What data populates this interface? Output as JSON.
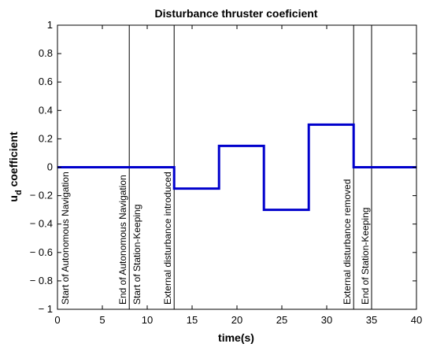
{
  "chart_data": {
    "type": "line",
    "title": "Disturbance thruster coeficient",
    "xlabel": "time(s)",
    "ylabel_main": "u",
    "ylabel_sub": "d",
    "ylabel_rest": " coefficient",
    "xlim": [
      0,
      40
    ],
    "ylim": [
      -1,
      1
    ],
    "grid": false,
    "xticks": [
      0,
      5,
      10,
      15,
      20,
      25,
      30,
      35,
      40
    ],
    "xtick_labels": [
      "0",
      "5",
      "10",
      "15",
      "20",
      "25",
      "30",
      "35",
      "40"
    ],
    "yticks": [
      -1,
      -0.8,
      -0.6,
      -0.4,
      -0.2,
      0,
      0.2,
      0.4,
      0.6,
      0.8,
      1
    ],
    "ytick_labels": [
      "− 1",
      "− 0.8",
      "− 0.6",
      "− 0.4",
      "− 0.2",
      "0",
      "0.2",
      "0.4",
      "0.6",
      "0.8",
      "1"
    ],
    "series": [
      {
        "color": "#0000cc",
        "x": [
          0,
          13,
          13,
          18,
          18,
          23,
          23,
          28,
          28,
          33,
          33,
          40
        ],
        "y": [
          0,
          0,
          -0.15,
          -0.15,
          0.15,
          0.15,
          -0.3,
          -0.3,
          0.3,
          0.3,
          0,
          0
        ]
      }
    ],
    "annotations": [
      {
        "x": 0,
        "text": "Start of Autonomous Navigation",
        "line": false
      },
      {
        "x": 8,
        "text": "End of Autonomous Navigation",
        "line": true
      },
      {
        "x": 8,
        "text": "Start of Station-Keeping",
        "line": false
      },
      {
        "x": 13,
        "text": "External disturbance introduced",
        "line": true
      },
      {
        "x": 33,
        "text": "External disturbance removed",
        "line": true
      },
      {
        "x": 35,
        "text": "End of Station-Keeping",
        "line": true
      }
    ]
  }
}
